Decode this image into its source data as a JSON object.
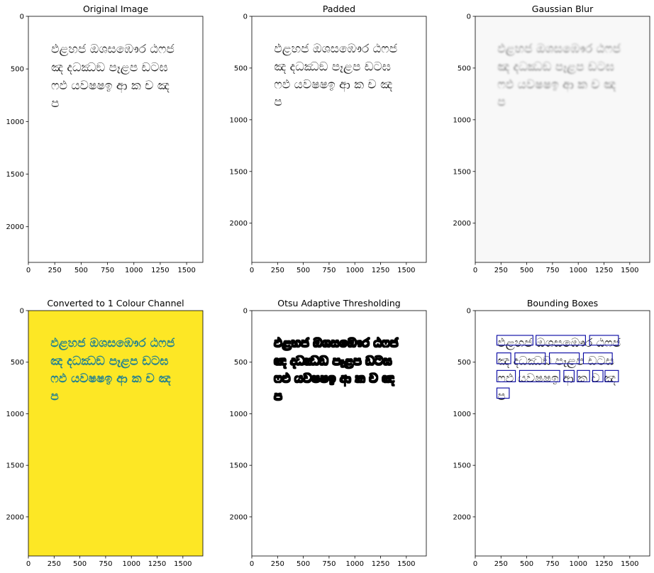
{
  "chart_data": [
    {
      "type": "image",
      "title": "Original Image",
      "style": "plain",
      "xlim": [
        0,
        1654
      ],
      "ylim": [
        2339,
        0
      ],
      "xticks": [
        0,
        250,
        500,
        750,
        1000,
        1250,
        1500
      ],
      "yticks": [
        0,
        500,
        1000,
        1500,
        2000
      ],
      "image_size": [
        1654,
        2339
      ],
      "lines": [
        "ඵළහජ ඔශසඹෞර ඨෆජ",
        "ඤ දධඣඞ පෑළප ඩටඝ",
        "ෆඵ යවෂෂඉ ආ ක ච ඤ",
        "ප"
      ]
    },
    {
      "type": "image",
      "title": "Padded",
      "style": "plain",
      "xlim": [
        0,
        1694
      ],
      "ylim": [
        2379,
        0
      ],
      "xticks": [
        0,
        250,
        500,
        750,
        1000,
        1250,
        1500
      ],
      "yticks": [
        0,
        500,
        1000,
        1500,
        2000
      ],
      "image_size": [
        1694,
        2379
      ],
      "lines": [
        "ඵළහජ ඔශසඹෞර ඨෆජ",
        "ඤ දධඣඞ පෑළප ඩටඝ",
        "ෆඵ යවෂෂඉ ආ ක ච ඤ",
        "ප"
      ]
    },
    {
      "type": "image",
      "title": "Gaussian Blur",
      "style": "blur",
      "xlim": [
        0,
        1694
      ],
      "ylim": [
        2379,
        0
      ],
      "xticks": [
        0,
        250,
        500,
        750,
        1000,
        1250,
        1500
      ],
      "yticks": [
        0,
        500,
        1000,
        1500,
        2000
      ],
      "image_size": [
        1694,
        2379
      ],
      "lines": [
        "ඵළහජ ඔශසඹෞර ඨෆජ",
        "ඤ දධඣඞ පෑළප ඩටඝ",
        "ෆඵ යවෂෂඉ ආ ක ච ඤ",
        "ප"
      ]
    },
    {
      "type": "image",
      "title": "Converted to 1 Colour Channel",
      "style": "viridis",
      "xlim": [
        0,
        1694
      ],
      "ylim": [
        2379,
        0
      ],
      "xticks": [
        0,
        250,
        500,
        750,
        1000,
        1250,
        1500
      ],
      "yticks": [
        0,
        500,
        1000,
        1500,
        2000
      ],
      "image_size": [
        1694,
        2379
      ],
      "lines": [
        "ඵළහජ ඔශසඹෞර ඨෆජ",
        "ඤ දධඣඞ පෑළප ඩටඝ",
        "ෆඵ යවෂෂඉ ආ ක ච ඤ",
        "ප"
      ]
    },
    {
      "type": "image",
      "title": "Otsu Adaptive Thresholding",
      "style": "threshold",
      "xlim": [
        0,
        1694
      ],
      "ylim": [
        2379,
        0
      ],
      "xticks": [
        0,
        250,
        500,
        750,
        1000,
        1250,
        1500
      ],
      "yticks": [
        0,
        500,
        1000,
        1500,
        2000
      ],
      "image_size": [
        1694,
        2379
      ],
      "lines": [
        "ඵළහජ ඔශසඹෞර ඨෆජ",
        "ඤ දධඣඞ පෑළප ඩටඝ",
        "ෆඵ යවෂෂඉ ආ ක ච ඤ",
        "ප"
      ]
    },
    {
      "type": "image",
      "title": "Bounding Boxes",
      "style": "boxes",
      "xlim": [
        0,
        1694
      ],
      "ylim": [
        2379,
        0
      ],
      "xticks": [
        0,
        250,
        500,
        750,
        1000,
        1250,
        1500
      ],
      "yticks": [
        0,
        500,
        1000,
        1500,
        2000
      ],
      "image_size": [
        1694,
        2379
      ],
      "lines": [
        "ඵළහජ ඔශසඹෞර ඨෆජ",
        "ඤ දධඣඞ පෑළප ඩටඝ",
        "ෆඵ යවෂෂඉ ආ ක ච ඤ",
        "ප"
      ],
      "word_boxes": [
        {
          "x0": 210,
          "y0": 240,
          "x1": 560,
          "y1": 335
        },
        {
          "x0": 590,
          "y0": 240,
          "x1": 1070,
          "y1": 335
        },
        {
          "x0": 1110,
          "y0": 240,
          "x1": 1390,
          "y1": 335
        },
        {
          "x0": 210,
          "y0": 410,
          "x1": 345,
          "y1": 515
        },
        {
          "x0": 385,
          "y0": 410,
          "x1": 680,
          "y1": 515
        },
        {
          "x0": 720,
          "y0": 410,
          "x1": 1010,
          "y1": 515
        },
        {
          "x0": 1050,
          "y0": 410,
          "x1": 1330,
          "y1": 515
        },
        {
          "x0": 210,
          "y0": 580,
          "x1": 390,
          "y1": 690
        },
        {
          "x0": 430,
          "y0": 580,
          "x1": 820,
          "y1": 690
        },
        {
          "x0": 860,
          "y0": 580,
          "x1": 960,
          "y1": 690
        },
        {
          "x0": 990,
          "y0": 580,
          "x1": 1110,
          "y1": 690
        },
        {
          "x0": 1140,
          "y0": 580,
          "x1": 1240,
          "y1": 690
        },
        {
          "x0": 1260,
          "y0": 580,
          "x1": 1390,
          "y1": 690
        },
        {
          "x0": 210,
          "y0": 750,
          "x1": 330,
          "y1": 850
        }
      ]
    }
  ],
  "colors": {
    "viridis_background": "#fde725",
    "viridis_text": "#26828e",
    "blur_background": "#f8f8f8",
    "blur_text": "#7a7a7a",
    "box_stroke": "#0000a0",
    "text": "#2a2a2a",
    "threshold_text": "#000000"
  }
}
